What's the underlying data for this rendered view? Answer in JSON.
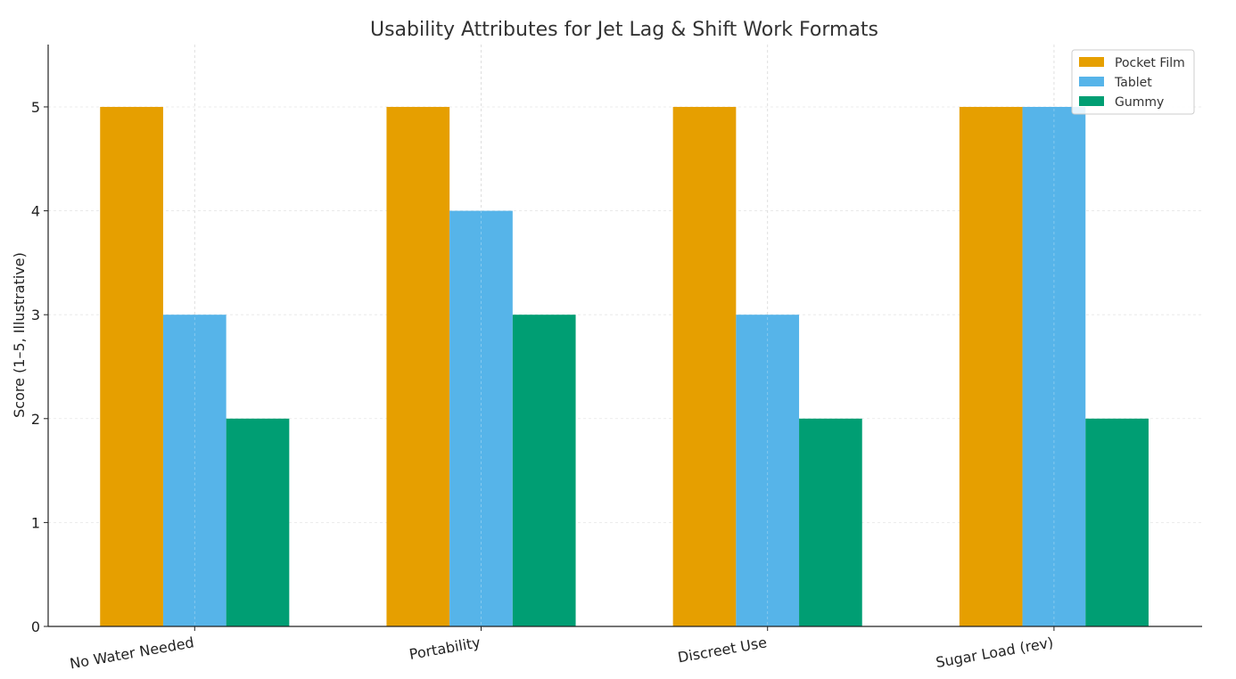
{
  "chart_data": {
    "type": "bar",
    "title": "Usability Attributes for Jet Lag & Shift Work Formats",
    "xlabel": "",
    "ylabel": "Score (1–5, Illustrative)",
    "categories": [
      "No Water Needed",
      "Portability",
      "Discreet Use",
      "Sugar Load (rev)"
    ],
    "series": [
      {
        "name": "Pocket Film",
        "values": [
          5,
          5,
          5,
          5
        ],
        "color": "#E69F00"
      },
      {
        "name": "Tablet",
        "values": [
          3,
          4,
          3,
          5
        ],
        "color": "#56B4E9"
      },
      {
        "name": "Gummy",
        "values": [
          2,
          3,
          2,
          2
        ],
        "color": "#009E73"
      }
    ],
    "ylim": [
      0,
      5.6
    ],
    "yticks": [
      "0",
      "1",
      "2",
      "3",
      "4",
      "5"
    ],
    "grid": true,
    "legend": "top-right"
  }
}
